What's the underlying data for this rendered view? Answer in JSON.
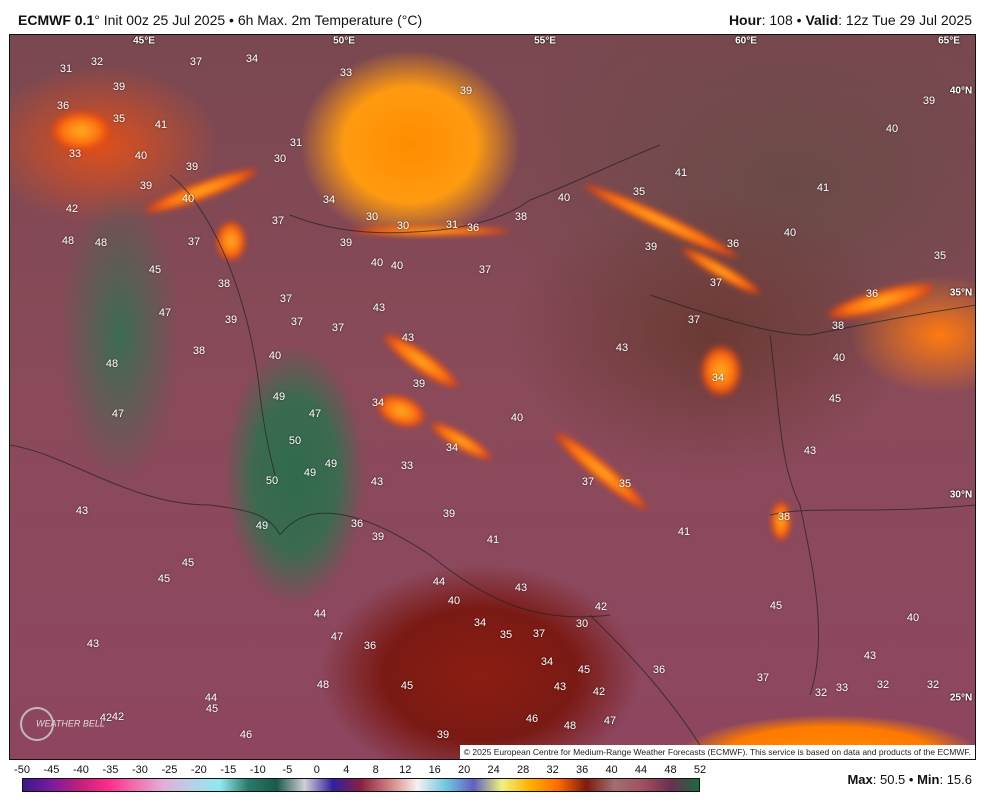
{
  "header": {
    "model": "ECMWF 0.1",
    "model_suffix": "°",
    "init": " Init 00z 25 Jul 2025 • 6h Max. 2m Temperature (°C)",
    "hour_label": "Hour",
    "hour_value": ": 108 • ",
    "valid_label": "Valid",
    "valid_value": ": 12z Tue 29 Jul 2025"
  },
  "map": {
    "longitude_labels": [
      "45°E",
      "50°E",
      "55°E",
      "60°E",
      "65°E"
    ],
    "latitude_labels": [
      "40°N",
      "35°N",
      "30°N",
      "25°N"
    ],
    "temperature_labels": [
      "31",
      "32",
      "37",
      "34",
      "33",
      "39",
      "36",
      "35",
      "41",
      "39",
      "39",
      "40",
      "33",
      "40",
      "39",
      "30",
      "31",
      "39",
      "40",
      "41",
      "41",
      "35",
      "40",
      "34",
      "42",
      "37",
      "30",
      "30",
      "31",
      "36",
      "38",
      "48",
      "48",
      "37",
      "39",
      "39",
      "36",
      "40",
      "35",
      "45",
      "40",
      "40",
      "37",
      "37",
      "38",
      "37",
      "36",
      "47",
      "43",
      "39",
      "37",
      "37",
      "37",
      "38",
      "43",
      "38",
      "40",
      "43",
      "48",
      "40",
      "39",
      "34",
      "49",
      "47",
      "34",
      "47",
      "45",
      "40",
      "50",
      "34",
      "43",
      "49",
      "33",
      "49",
      "50",
      "43",
      "37",
      "35",
      "43",
      "39",
      "38",
      "36",
      "39",
      "41",
      "41",
      "49",
      "45",
      "45",
      "44",
      "43",
      "40",
      "45",
      "42",
      "40",
      "44",
      "34",
      "35",
      "37",
      "30",
      "47",
      "36",
      "43",
      "34",
      "45",
      "36",
      "43",
      "37",
      "48",
      "45",
      "43",
      "42",
      "32",
      "33",
      "32",
      "32",
      "44",
      "45",
      "42",
      "42",
      "46",
      "48",
      "47",
      "46",
      "39"
    ],
    "copyright": "© 2025 European Centre for Medium-Range Weather Forecasts (ECMWF). This service is based on data and products of the ECMWF.",
    "logo_text": "WEATHERBELL"
  },
  "colorbar": {
    "ticks": [
      "-50",
      "-45",
      "-40",
      "-35",
      "-30",
      "-25",
      "-20",
      "-15",
      "-10",
      "-5",
      "0",
      "4",
      "8",
      "12",
      "16",
      "20",
      "24",
      "28",
      "32",
      "36",
      "40",
      "44",
      "48",
      "52"
    ],
    "unit": "°C"
  },
  "stats": {
    "max_label": "Max",
    "max_value": ": 50.5 • ",
    "min_label": "Min",
    "min_value": ": 15.6"
  },
  "colors": {
    "hot": "#ff8c00",
    "very_hot": "#2f6a4c",
    "mild": "#8a4a5a",
    "cool": "#7a1a14"
  }
}
